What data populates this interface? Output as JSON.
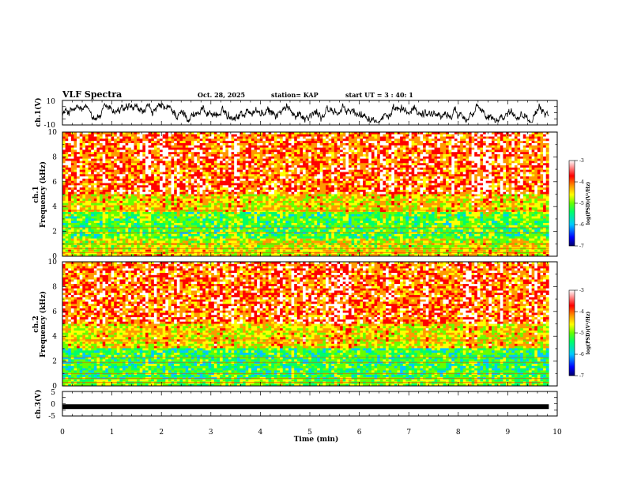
{
  "header": {
    "title": "VLF Spectra",
    "date": "Oct. 28, 2025",
    "station": "station= KAP",
    "start": "start UT =  3 : 40: 1"
  },
  "colors": {
    "spectral_stops": [
      "#000066",
      "#0000ff",
      "#00c8ff",
      "#00ff66",
      "#66ff00",
      "#ffff00",
      "#ff9900",
      "#ff0000",
      "#ffffff"
    ],
    "waveform": "#000000",
    "background": "#ffffff"
  },
  "chart_data": [
    {
      "type": "line",
      "name": "ch1-waveform",
      "ylabel": "ch.1(V)",
      "ylim": [
        -10,
        10
      ],
      "yticks": [
        "10",
        "-10"
      ],
      "xlim": [
        0,
        10
      ],
      "x_end": 9.83,
      "description_values": "noisy waveform oscillating mostly between about -6 V and +6 V"
    },
    {
      "type": "heatmap",
      "name": "ch1-spectrogram",
      "ylabel": "ch.1\nFrequency (kHz)",
      "ylim": [
        0,
        10
      ],
      "yticks": [
        "0",
        "2",
        "4",
        "6",
        "8",
        "10"
      ],
      "xlim": [
        0,
        10
      ],
      "x_end": 9.83,
      "colorbar": {
        "label": "log(PSD)(V²/Hz)",
        "range": [
          -7,
          -3
        ],
        "ticks": [
          "-3",
          "-4",
          "-5",
          "-6",
          "-7"
        ]
      },
      "bands": [
        {
          "f_low": 0,
          "f_high": 0.5,
          "level": -4.5
        },
        {
          "f_low": 0.5,
          "f_high": 1.5,
          "level": -4.7
        },
        {
          "f_low": 1.5,
          "f_high": 3.5,
          "level": -5.2
        },
        {
          "f_low": 3.5,
          "f_high": 5,
          "level": -4.5
        },
        {
          "f_low": 5,
          "f_high": 10,
          "level": -3.9
        }
      ]
    },
    {
      "type": "heatmap",
      "name": "ch2-spectrogram",
      "ylabel": "ch.2\nFrequency (kHz)",
      "ylim": [
        0,
        10
      ],
      "yticks": [
        "0",
        "2",
        "4",
        "6",
        "8",
        "10"
      ],
      "xlim": [
        0,
        10
      ],
      "x_end": 9.83,
      "colorbar": {
        "label": "log(PSD)(V²/Hz)",
        "range": [
          -7,
          -3
        ],
        "ticks": [
          "-3",
          "-4",
          "-5",
          "-6",
          "-7"
        ]
      },
      "bands": [
        {
          "f_low": 0,
          "f_high": 0.5,
          "level": -5.0
        },
        {
          "f_low": 0.5,
          "f_high": 3,
          "level": -5.3
        },
        {
          "f_low": 3,
          "f_high": 5,
          "level": -4.5
        },
        {
          "f_low": 5,
          "f_high": 10,
          "level": -3.9
        }
      ]
    },
    {
      "type": "line",
      "name": "ch3-waveform",
      "ylabel": "ch.3(V)",
      "ylim": [
        -5,
        5
      ],
      "yticks": [
        "5",
        "0",
        "-5"
      ],
      "xlim": [
        0,
        10
      ],
      "x_end": 9.83,
      "constant_value": -1.2
    }
  ],
  "xaxis": {
    "label": "Time (min)",
    "ticks": [
      "0",
      "1",
      "2",
      "3",
      "4",
      "5",
      "6",
      "7",
      "8",
      "9",
      "10"
    ]
  }
}
